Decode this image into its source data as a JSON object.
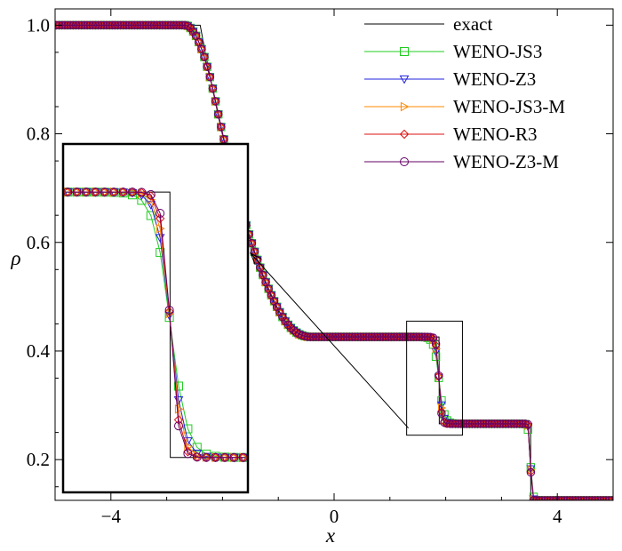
{
  "chart_data": {
    "type": "line",
    "xlabel": "x",
    "ylabel": "ρ",
    "xlim": [
      -5,
      5
    ],
    "ylim": [
      0.125,
      1.03
    ],
    "x_ticks": [
      "−4",
      "0",
      "4"
    ],
    "y_ticks": [
      "0.2",
      "0.4",
      "0.6",
      "0.8",
      "1.0"
    ],
    "x_tick_values": [
      -4,
      0,
      4
    ],
    "y_tick_values": [
      0.2,
      0.4,
      0.6,
      0.8,
      1.0
    ],
    "legend_position": "top-right",
    "series": [
      {
        "name": "exact",
        "color": "#000000",
        "marker": "none"
      },
      {
        "name": "WENO-JS3",
        "color": "#22cc22",
        "marker": "square"
      },
      {
        "name": "WENO-Z3",
        "color": "#2222dd",
        "marker": "triangle-down"
      },
      {
        "name": "WENO-JS3-M",
        "color": "#ff8800",
        "marker": "triangle-right"
      },
      {
        "name": "WENO-R3",
        "color": "#dd1111",
        "marker": "diamond"
      },
      {
        "name": "WENO-Z3-M",
        "color": "#660066",
        "marker": "circle"
      }
    ],
    "profile": {
      "left_state": 1.0,
      "rarefaction": [
        -2.4,
        -0.7
      ],
      "plateau_left": 0.426,
      "contact": 1.88,
      "plateau_right": 0.266,
      "shock": 3.52,
      "right_state": 0.125
    },
    "inset": {
      "x_range": [
        1.3,
        2.3
      ],
      "y_range": [
        0.245,
        0.455
      ]
    }
  }
}
